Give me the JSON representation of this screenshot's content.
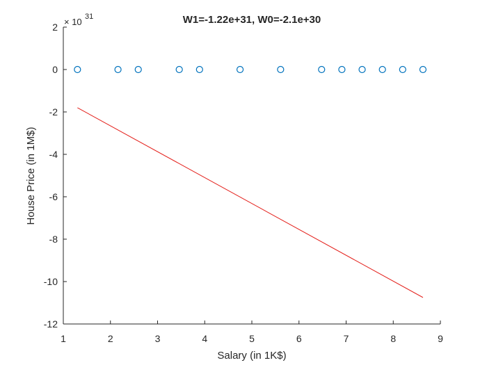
{
  "chart_data": {
    "type": "scatter",
    "title": "W1=-1.22e+31, W0=-2.1e+30",
    "xlabel": "Salary (in 1K$)",
    "ylabel": "House Price (in 1M$)",
    "xlim": [
      1,
      9
    ],
    "ylim": [
      -12,
      2
    ],
    "x_ticks": [
      1,
      2,
      3,
      4,
      5,
      6,
      7,
      8,
      9
    ],
    "y_ticks": [
      -12,
      -10,
      -8,
      -6,
      -4,
      -2,
      0,
      2
    ],
    "y_multiplier_base": "× 10",
    "y_multiplier_exponent": "31",
    "grid": false,
    "box": "left-bottom",
    "series": [
      {
        "type": "scatter",
        "marker": "circle-open",
        "color": "#0072BD",
        "x": [
          1.3,
          2.16,
          2.59,
          3.46,
          3.89,
          4.75,
          5.61,
          6.48,
          6.91,
          7.34,
          7.77,
          8.2,
          8.63
        ],
        "y": [
          0,
          0,
          0,
          0,
          0,
          0,
          0,
          0,
          0,
          0,
          0,
          0,
          0
        ]
      },
      {
        "type": "line",
        "color": "#E4211C",
        "x": [
          1.3,
          8.63
        ],
        "y": [
          -1.8,
          -10.75
        ]
      }
    ]
  }
}
